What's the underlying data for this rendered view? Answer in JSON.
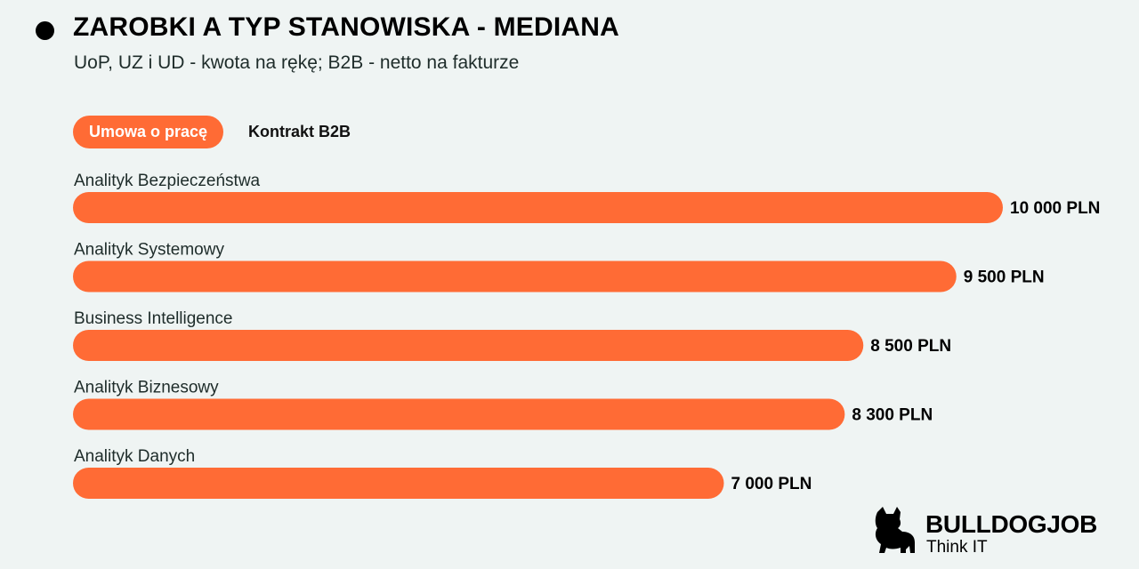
{
  "header": {
    "title": "ZAROBKI A TYP STANOWISKA - MEDIANA",
    "subtitle": "UoP, UZ i UD - kwota na rękę; B2B - netto na fakturze"
  },
  "tabs": [
    {
      "label": "Umowa o pracę",
      "active": true
    },
    {
      "label": "Kontrakt B2B",
      "active": false
    }
  ],
  "chart_data": {
    "type": "bar",
    "orientation": "horizontal",
    "categories": [
      "Analityk Bezpieczeństwa",
      "Analityk Systemowy",
      "Business Intelligence",
      "Analityk Biznesowy",
      "Analityk Danych"
    ],
    "values": [
      10000,
      9500,
      8500,
      8300,
      7000
    ],
    "value_labels": [
      "10 000 PLN",
      "9 500 PLN",
      "8 500 PLN",
      "8 300 PLN",
      "7 000 PLN"
    ],
    "unit": "PLN",
    "xlim": [
      0,
      10000
    ],
    "grid": false,
    "bar_color": "#ff6b35"
  },
  "branding": {
    "name": "BULLDOGJOB",
    "tagline": "Think IT"
  },
  "colors": {
    "accent": "#ff6b35",
    "background": "#eff4f3"
  }
}
